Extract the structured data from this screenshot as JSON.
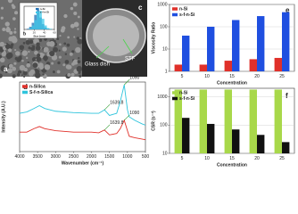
{
  "panels": {
    "a": {
      "label": "a"
    },
    "c": {
      "label": "c",
      "annotations": [
        "Glass dish",
        "STF"
      ]
    }
  },
  "chart_data": [
    {
      "type": "histogram",
      "panel_label": "b",
      "xlabel": "Size (nm)",
      "bins": [
        0,
        5,
        10,
        15,
        20,
        25,
        30,
        35,
        40,
        45,
        50,
        55,
        60
      ],
      "series": [
        {
          "name": "n-Si",
          "color": "#1f6fb4",
          "values": [
            0,
            1,
            4,
            10,
            22,
            30,
            18,
            8,
            3,
            1,
            0,
            0
          ]
        },
        {
          "name": "s-f-n-Si",
          "color": "#3cc8e8",
          "values": [
            0,
            0,
            2,
            6,
            14,
            24,
            28,
            16,
            6,
            2,
            1,
            0
          ]
        }
      ],
      "xlim": [
        0,
        60
      ],
      "xticks": [
        0,
        20,
        40,
        60
      ],
      "ylim": [
        0,
        35
      ],
      "legend": "top-right"
    },
    {
      "type": "line",
      "panel_label": "d",
      "xlabel": "Wavenumber (cm⁻¹)",
      "ylabel": "Intensity (A.U.)",
      "x": [
        4000,
        3800,
        3600,
        3450,
        3300,
        3000,
        2500,
        2000,
        1800,
        1639.8,
        1500,
        1300,
        1200,
        1090,
        1000,
        950,
        800,
        600,
        500
      ],
      "series": [
        {
          "name": "n-Silica",
          "color": "#e0302a",
          "values": [
            0.28,
            0.28,
            0.33,
            0.36,
            0.33,
            0.3,
            0.28,
            0.28,
            0.27,
            0.31,
            0.24,
            0.26,
            0.33,
            0.45,
            0.3,
            0.22,
            0.2,
            0.18,
            0.17
          ]
        },
        {
          "name": "S-f-n-Silica",
          "color": "#2ec4dc",
          "values": [
            0.55,
            0.57,
            0.62,
            0.66,
            0.62,
            0.58,
            0.56,
            0.55,
            0.55,
            0.6,
            0.52,
            0.55,
            0.72,
            0.96,
            0.6,
            0.5,
            0.45,
            0.4,
            0.38
          ]
        }
      ],
      "annotations": [
        {
          "text": "1639.8",
          "x": 1639.8,
          "y": 0.6
        },
        {
          "text": "1639.8",
          "x": 1639.8,
          "y": 0.31
        },
        {
          "text": "1090",
          "x": 1090,
          "y": 0.96
        },
        {
          "text": "1090",
          "x": 1090,
          "y": 0.45
        }
      ],
      "xlim": [
        4000,
        500
      ],
      "xticks": [
        4000,
        3500,
        3000,
        2500,
        2000,
        1500,
        1000,
        500
      ],
      "ylim": [
        0,
        1
      ],
      "legend": "top-left"
    },
    {
      "type": "bar",
      "panel_label": "e",
      "xlabel": "Concentration",
      "ylabel": "Viscosity Ratio",
      "categories": [
        "5",
        "10",
        "15",
        "20",
        "25"
      ],
      "series": [
        {
          "name": "n-Si",
          "color": "#e0302a",
          "values": [
            2,
            2,
            3,
            3.5,
            4
          ]
        },
        {
          "name": "s-f-n-Si",
          "color": "#1f4fe0",
          "values": [
            40,
            100,
            200,
            300,
            450
          ]
        }
      ],
      "log": true,
      "ylim": [
        1,
        1000
      ],
      "yticks": [
        1,
        10,
        100,
        1000
      ],
      "legend": "top-left"
    },
    {
      "type": "bar",
      "panel_label": "f",
      "xlabel": "Concentration",
      "ylabel": "CSR (s⁻¹)",
      "categories": [
        "5",
        "10",
        "15",
        "20",
        "25"
      ],
      "series": [
        {
          "name": "n-Si",
          "color": "#a8d84a",
          "values": [
            1800,
            1800,
            1800,
            1800,
            1800
          ]
        },
        {
          "name": "s-f-n-Si",
          "color": "#111111",
          "values": [
            180,
            110,
            70,
            45,
            25
          ]
        }
      ],
      "log": true,
      "ylim": [
        10,
        2000
      ],
      "yticks": [
        10,
        100,
        1000
      ],
      "legend": "top-left"
    }
  ]
}
